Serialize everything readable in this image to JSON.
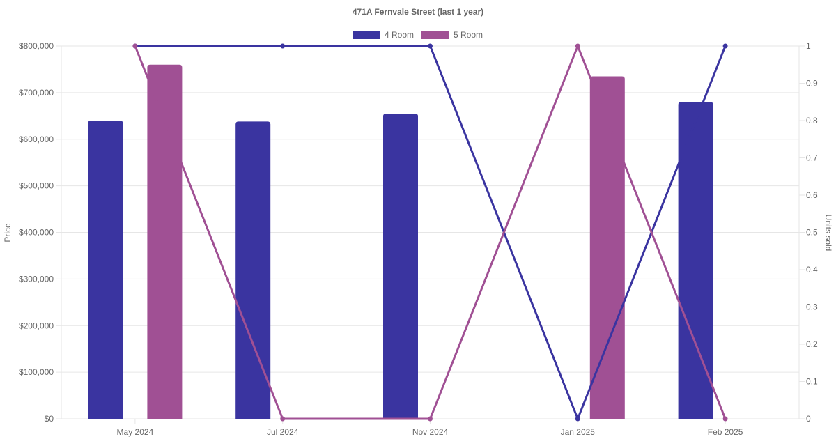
{
  "chart_data": {
    "type": "bar",
    "title": "471A Fernvale Street (last 1 year)",
    "categories": [
      "May 2024",
      "Jul 2024",
      "Nov 2024",
      "Jan 2025",
      "Feb 2025"
    ],
    "series": [
      {
        "name": "4 Room",
        "color": "#3a34a0",
        "kind": "bar",
        "axis": "left",
        "values": [
          640000,
          638000,
          655000,
          null,
          680000
        ]
      },
      {
        "name": "5 Room",
        "color": "#a05094",
        "kind": "bar",
        "axis": "left",
        "values": [
          760000,
          null,
          null,
          735000,
          null
        ]
      },
      {
        "name": "4 Room",
        "color": "#3a34a0",
        "kind": "line",
        "axis": "right",
        "values": [
          1,
          1,
          1,
          0,
          1
        ]
      },
      {
        "name": "5 Room",
        "color": "#a05094",
        "kind": "line",
        "axis": "right",
        "values": [
          1,
          0,
          0,
          1,
          0
        ]
      }
    ],
    "legend": [
      {
        "name": "4 Room",
        "color": "#3a34a0"
      },
      {
        "name": "5 Room",
        "color": "#a05094"
      }
    ],
    "legend_position": "top",
    "ylabel": "Price",
    "y2label": "Units sold",
    "ylim": [
      0,
      800000
    ],
    "y2lim": [
      0,
      1
    ],
    "y_ticks": [
      "$0",
      "$100,000",
      "$200,000",
      "$300,000",
      "$400,000",
      "$500,000",
      "$600,000",
      "$700,000",
      "$800,000"
    ],
    "y2_ticks": [
      "0",
      "0.1",
      "0.2",
      "0.3",
      "0.4",
      "0.5",
      "0.6",
      "0.7",
      "0.8",
      "0.9",
      "1"
    ],
    "grid": true
  }
}
